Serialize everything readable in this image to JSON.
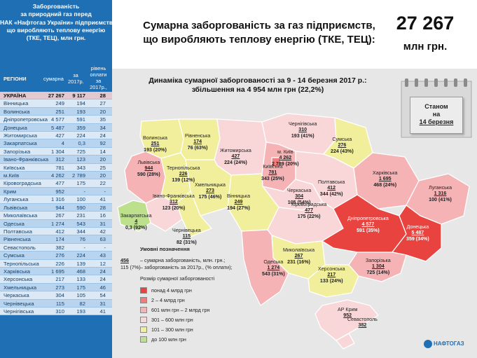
{
  "left_panel": {
    "title_lines": [
      "Заборгованість",
      "за природний газ перед",
      "НАК «Нафтогаз України» підприємств,",
      "що виробляють теплову енергію",
      "(ТКЕ, ТЕЦ), млн грн."
    ],
    "col_region": "РЕГІОНИ",
    "col_sum": "сумарна",
    "col_2017": "за 2017р.",
    "col_pct": "рівень оплати за 2017р., %",
    "total": {
      "name": "УКРАЇНА",
      "sum": "27 267",
      "y2017": "9 117",
      "pct": "28"
    },
    "rows": [
      {
        "name": "Вінницька",
        "sum": "249",
        "y2017": "194",
        "pct": "27"
      },
      {
        "name": "Волинська",
        "sum": "251",
        "y2017": "193",
        "pct": "20"
      },
      {
        "name": "Дніпропетровська",
        "sum": "4 577",
        "y2017": "591",
        "pct": "35"
      },
      {
        "name": "Донецька",
        "sum": "5 487",
        "y2017": "359",
        "pct": "34"
      },
      {
        "name": "Житомирська",
        "sum": "427",
        "y2017": "224",
        "pct": "24"
      },
      {
        "name": "Закарпатська",
        "sum": "4",
        "y2017": "0,3",
        "pct": "92"
      },
      {
        "name": "Запорізька",
        "sum": "1 304",
        "y2017": "725",
        "pct": "14"
      },
      {
        "name": "Івано-Франківська",
        "sum": "312",
        "y2017": "123",
        "pct": "20"
      },
      {
        "name": "Київська",
        "sum": "781",
        "y2017": "343",
        "pct": "25"
      },
      {
        "name": "м.Київ",
        "sum": "4 262",
        "y2017": "2 789",
        "pct": "20"
      },
      {
        "name": "Кіровоградська",
        "sum": "477",
        "y2017": "175",
        "pct": "22"
      },
      {
        "name": "Крим",
        "sum": "952",
        "y2017": "-",
        "pct": "-"
      },
      {
        "name": "Луганська",
        "sum": "1 316",
        "y2017": "100",
        "pct": "41"
      },
      {
        "name": "Львівська",
        "sum": "944",
        "y2017": "590",
        "pct": "28"
      },
      {
        "name": "Миколаївська",
        "sum": "267",
        "y2017": "231",
        "pct": "16"
      },
      {
        "name": "Одеська",
        "sum": "1 274",
        "y2017": "543",
        "pct": "31"
      },
      {
        "name": "Полтавська",
        "sum": "412",
        "y2017": "344",
        "pct": "42"
      },
      {
        "name": "Рівненська",
        "sum": "174",
        "y2017": "76",
        "pct": "63"
      },
      {
        "name": "Севастополь",
        "sum": "382",
        "y2017": "-",
        "pct": "-"
      },
      {
        "name": "Сумська",
        "sum": "276",
        "y2017": "224",
        "pct": "43"
      },
      {
        "name": "Тернопільська",
        "sum": "226",
        "y2017": "139",
        "pct": "12"
      },
      {
        "name": "Харківська",
        "sum": "1 695",
        "y2017": "468",
        "pct": "24"
      },
      {
        "name": "Херсонська",
        "sum": "217",
        "y2017": "133",
        "pct": "24"
      },
      {
        "name": "Хмельницька",
        "sum": "273",
        "y2017": "175",
        "pct": "46"
      },
      {
        "name": "Черкаська",
        "sum": "304",
        "y2017": "105",
        "pct": "54"
      },
      {
        "name": "Чернівецька",
        "sum": "115",
        "y2017": "82",
        "pct": "31"
      },
      {
        "name": "Чернігівська",
        "sum": "310",
        "y2017": "193",
        "pct": "41"
      }
    ]
  },
  "header": {
    "title_line1": "Сумарна заборгованість за газ підприємств,",
    "title_line2": "що виробляють теплову енергію (ТКЕ, ТЕЦ):",
    "total_value": "27 267",
    "total_unit": "млн грн."
  },
  "map": {
    "dynamics_line1": "Динаміка сумарної заборгованості за 9 - 14 березня 2017 р.:",
    "dynamics_line2": "збільшення на 4 954 млн грн (22,2%)",
    "status_line1": "Станом",
    "status_line2": "на",
    "status_date": "14 березня",
    "regions": [
      {
        "name": "Волинська",
        "debt": "251",
        "paid": "193 (20%)"
      },
      {
        "name": "Рівненська",
        "debt": "174",
        "paid": "76 (63%)"
      },
      {
        "name": "Житомирська",
        "debt": "427",
        "paid": "224 (24%)"
      },
      {
        "name": "Чернігівська",
        "debt": "310",
        "paid": "193 (41%)"
      },
      {
        "name": "Сумська",
        "debt": "276",
        "paid": "224 (43%)"
      },
      {
        "name": "м. Київ",
        "debt": "4 262",
        "paid": "2 789 (20%)"
      },
      {
        "name": "Київська",
        "debt": "781",
        "paid": "343 (25%)"
      },
      {
        "name": "Полтавська",
        "debt": "412",
        "paid": "344 (42%)"
      },
      {
        "name": "Харківська",
        "debt": "1 695",
        "paid": "468 (24%)"
      },
      {
        "name": "Львівська",
        "debt": "944",
        "paid": "590 (28%)"
      },
      {
        "name": "Тернопільська",
        "debt": "226",
        "paid": "139 (12%)"
      },
      {
        "name": "Хмельницька",
        "debt": "273",
        "paid": "175 (46%)"
      },
      {
        "name": "Вінницька",
        "debt": "249",
        "paid": "194 (27%)"
      },
      {
        "name": "Черкаська",
        "debt": "304",
        "paid": "105 (54%)"
      },
      {
        "name": "Луганська",
        "debt": "1 316",
        "paid": "100 (41%)"
      },
      {
        "name": "Закарпатська",
        "debt": "4",
        "paid": "0,3 (92%)"
      },
      {
        "name": "Івано-Франківська",
        "debt": "312",
        "paid": "123 (20%)"
      },
      {
        "name": "Чернівецька",
        "debt": "115",
        "paid": "82 (31%)"
      },
      {
        "name": "Кіровоградська",
        "debt": "477",
        "paid": "175 (22%)"
      },
      {
        "name": "Дніпропетровська",
        "debt": "4 577",
        "paid": "591 (35%)"
      },
      {
        "name": "Донецька",
        "debt": "5 487",
        "paid": "359 (34%)"
      },
      {
        "name": "Миколаївська",
        "debt": "267",
        "paid": "231 (16%)"
      },
      {
        "name": "Запорізька",
        "debt": "1 304",
        "paid": "725 (14%)"
      },
      {
        "name": "Одеська",
        "debt": "1 274",
        "paid": "543 (31%)"
      },
      {
        "name": "Херсонська",
        "debt": "217",
        "paid": "133 (24%)"
      },
      {
        "name": "АР Крим",
        "debt": "952",
        "paid": ""
      },
      {
        "name": "Севастополь",
        "debt": "382",
        "paid": ""
      }
    ],
    "legend": {
      "title": "Умовні позначення",
      "example_sum": "456",
      "example_2017": "115 (7%)",
      "desc_sum": "– сумарна заборгованість, млн. грн.;",
      "desc_2017": "– заборгованість за 2017р., (% оплати);",
      "size_title": "Розмір сумарної заборгованості",
      "items": [
        {
          "label": "понад 4 млрд грн",
          "color": "#e8433f"
        },
        {
          "label": "2 – 4 млрд грн",
          "color": "#ee7d7c"
        },
        {
          "label": "601 млн грн – 2 млрд грн",
          "color": "#f5b3b6"
        },
        {
          "label": "301 – 600 млн грн",
          "color": "#f9d7d9"
        },
        {
          "label": "101 – 300 млн грн",
          "color": "#f2ef9c"
        },
        {
          "label": "до 100 млн грн",
          "color": "#bce08b"
        }
      ]
    },
    "logo": "НАФТОГАЗ"
  },
  "colors": {
    "panel": "#1f6fb5",
    "row_light": "#dbe9f6",
    "row_dark": "#b9d4ee",
    "total_row": "#e3c9cf",
    "map_bg": "#e7e7e7"
  }
}
